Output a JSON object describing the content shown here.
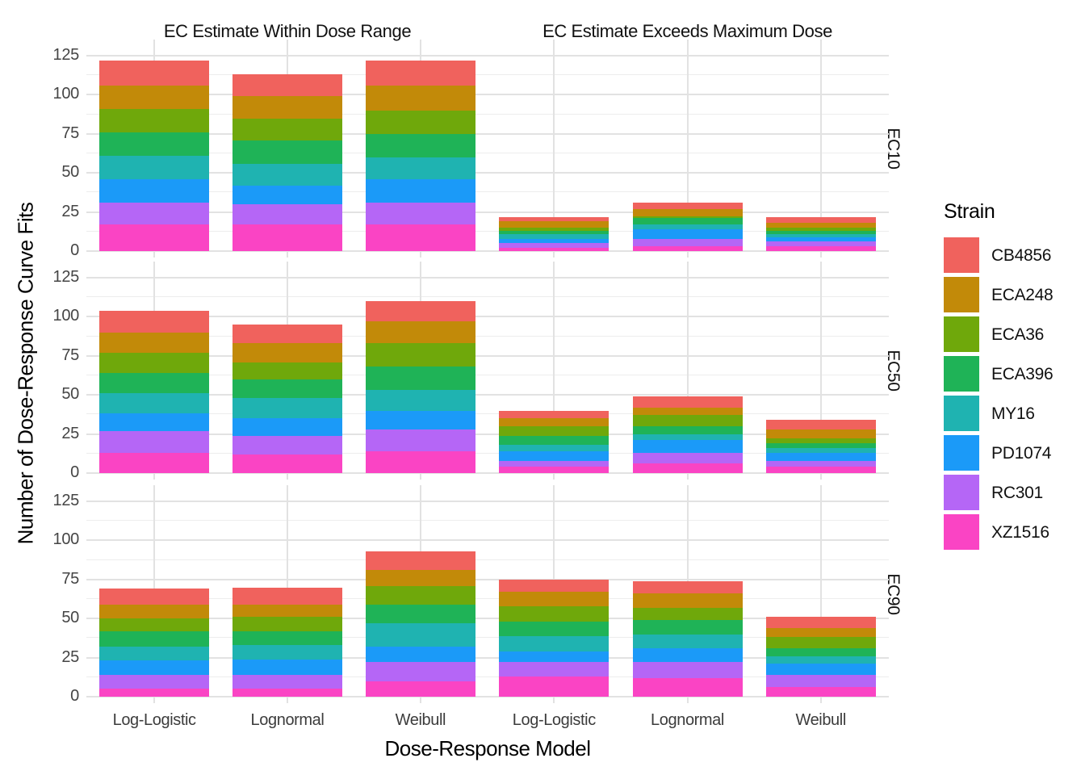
{
  "chart_data": {
    "type": "bar",
    "stacked": true,
    "facet_grid": {
      "rows": "EC level",
      "cols": "EC estimate outcome"
    },
    "col_facets": [
      "EC Estimate Within Dose Range",
      "EC Estimate Exceeds Maximum Dose"
    ],
    "row_facets": [
      "EC10",
      "EC50",
      "EC90"
    ],
    "x_categories": [
      "Log-Logistic",
      "Lognormal",
      "Weibull"
    ],
    "xlabel": "Dose-Response Model",
    "ylabel": "Number of Dose-Response Curve Fits",
    "ylim": [
      0,
      125
    ],
    "y_ticks": [
      0,
      25,
      50,
      75,
      100,
      125
    ],
    "y_minor_ticks": [
      12.5,
      37.5,
      62.5,
      87.5,
      112.5
    ],
    "grid": "major and minor horizontal, vertical at category centers, light gray on white",
    "legend": {
      "title": "Strain",
      "position": "right"
    },
    "series": [
      {
        "name": "CB4856",
        "color": "#F0625D"
      },
      {
        "name": "ECA248",
        "color": "#C28A09"
      },
      {
        "name": "ECA36",
        "color": "#6FA80B"
      },
      {
        "name": "ECA396",
        "color": "#1FB357"
      },
      {
        "name": "MY16",
        "color": "#1FB3B1"
      },
      {
        "name": "PD1074",
        "color": "#1B9AF8"
      },
      {
        "name": "RC301",
        "color": "#B566F6"
      },
      {
        "name": "XZ1516",
        "color": "#FA44C4"
      }
    ],
    "stack_order_bottom_to_top": [
      "XZ1516",
      "RC301",
      "PD1074",
      "MY16",
      "ECA396",
      "ECA36",
      "ECA248",
      "CB4856"
    ],
    "value_order": [
      "CB4856",
      "ECA248",
      "ECA36",
      "ECA396",
      "MY16",
      "PD1074",
      "RC301",
      "XZ1516"
    ],
    "panels": [
      {
        "row_facet": "EC10",
        "col_facet": "EC Estimate Within Dose Range",
        "bars": [
          {
            "category": "Log-Logistic",
            "values": [
              16,
              15,
              15,
              15,
              15,
              15,
              14,
              17
            ],
            "total": 122
          },
          {
            "category": "Lognormal",
            "values": [
              14,
              14,
              14,
              15,
              14,
              12,
              13,
              17
            ],
            "total": 113
          },
          {
            "category": "Weibull",
            "values": [
              16,
              16,
              15,
              15,
              14,
              15,
              14,
              17
            ],
            "total": 122
          }
        ]
      },
      {
        "row_facet": "EC10",
        "col_facet": "EC Estimate Exceeds Maximum Dose",
        "bars": [
          {
            "category": "Log-Logistic",
            "values": [
              3,
              4,
              2,
              2,
              3,
              3,
              3,
              2
            ],
            "total": 22
          },
          {
            "category": "Lognormal",
            "values": [
              4,
              5,
              1,
              4,
              3,
              6,
              5,
              3
            ],
            "total": 31
          },
          {
            "category": "Weibull",
            "values": [
              4,
              3,
              2,
              2,
              2,
              3,
              3,
              3
            ],
            "total": 22
          }
        ]
      },
      {
        "row_facet": "EC50",
        "col_facet": "EC Estimate Within Dose Range",
        "bars": [
          {
            "category": "Log-Logistic",
            "values": [
              14,
              13,
              13,
              13,
              13,
              11,
              14,
              13
            ],
            "total": 104
          },
          {
            "category": "Lognormal",
            "values": [
              12,
              12,
              11,
              12,
              13,
              11,
              12,
              12
            ],
            "total": 95
          },
          {
            "category": "Weibull",
            "values": [
              13,
              14,
              15,
              15,
              13,
              12,
              14,
              14
            ],
            "total": 110
          }
        ]
      },
      {
        "row_facet": "EC50",
        "col_facet": "EC Estimate Exceeds Maximum Dose",
        "bars": [
          {
            "category": "Log-Logistic",
            "values": [
              5,
              5,
              6,
              6,
              4,
              6,
              4,
              4
            ],
            "total": 40
          },
          {
            "category": "Lognormal",
            "values": [
              7,
              5,
              7,
              5,
              4,
              8,
              7,
              6
            ],
            "total": 49
          },
          {
            "category": "Weibull",
            "values": [
              6,
              6,
              3,
              3,
              3,
              5,
              4,
              4
            ],
            "total": 34
          }
        ]
      },
      {
        "row_facet": "EC90",
        "col_facet": "EC Estimate Within Dose Range",
        "bars": [
          {
            "category": "Log-Logistic",
            "values": [
              10,
              9,
              8,
              10,
              9,
              9,
              9,
              5
            ],
            "total": 69
          },
          {
            "category": "Lognormal",
            "values": [
              11,
              8,
              9,
              9,
              9,
              10,
              9,
              5
            ],
            "total": 70
          },
          {
            "category": "Weibull",
            "values": [
              12,
              10,
              12,
              12,
              15,
              10,
              12,
              10
            ],
            "total": 93
          }
        ]
      },
      {
        "row_facet": "EC90",
        "col_facet": "EC Estimate Exceeds Maximum Dose",
        "bars": [
          {
            "category": "Log-Logistic",
            "values": [
              8,
              9,
              10,
              9,
              10,
              7,
              9,
              13
            ],
            "total": 75
          },
          {
            "category": "Lognormal",
            "values": [
              8,
              9,
              8,
              9,
              9,
              9,
              10,
              12
            ],
            "total": 74
          },
          {
            "category": "Weibull",
            "values": [
              7,
              6,
              7,
              5,
              5,
              7,
              8,
              6
            ],
            "total": 51
          }
        ]
      }
    ]
  }
}
